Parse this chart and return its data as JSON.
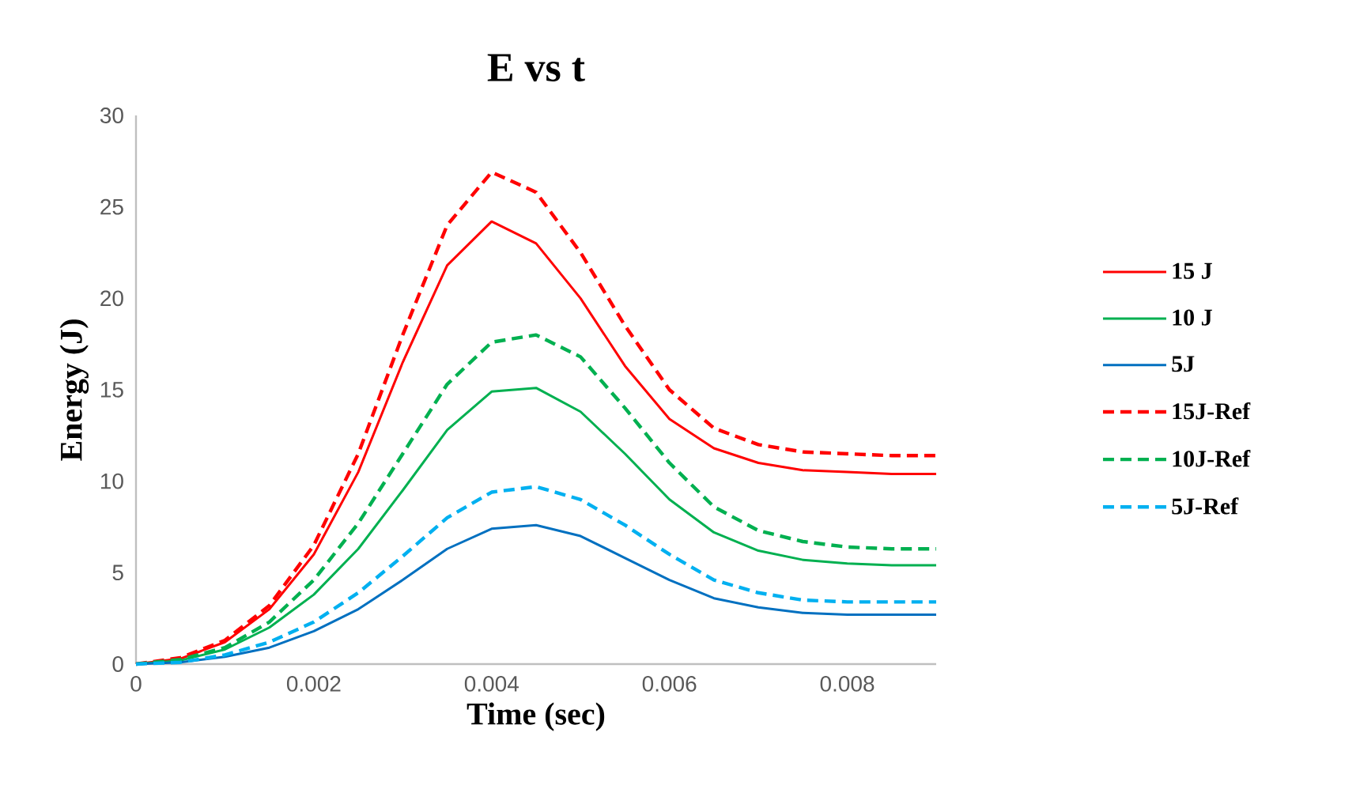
{
  "chart_data": {
    "type": "line",
    "title": "E vs t",
    "xlabel": "Time (sec)",
    "ylabel": "Energy (J)",
    "x": [
      0,
      0.0005,
      0.001,
      0.0015,
      0.002,
      0.0025,
      0.003,
      0.0035,
      0.004,
      0.0045,
      0.005,
      0.0055,
      0.006,
      0.0065,
      0.007,
      0.0075,
      0.008,
      0.0085,
      0.009
    ],
    "xlim": [
      0,
      0.009
    ],
    "xticks": [
      0,
      0.002,
      0.004,
      0.006,
      0.008
    ],
    "ylim": [
      0,
      30
    ],
    "yticks": [
      0,
      5,
      10,
      15,
      20,
      25,
      30
    ],
    "legend": "right",
    "series": [
      {
        "name": "15 J",
        "color": "#ff0000",
        "line_style": "solid",
        "values": [
          0,
          0.3,
          1.2,
          3.0,
          6.0,
          10.5,
          16.5,
          21.8,
          24.2,
          23.0,
          20.0,
          16.3,
          13.4,
          11.8,
          11.0,
          10.6,
          10.5,
          10.4,
          10.4
        ]
      },
      {
        "name": "10 J",
        "color": "#00b050",
        "line_style": "solid",
        "values": [
          0,
          0.2,
          0.8,
          2.0,
          3.8,
          6.3,
          9.5,
          12.8,
          14.9,
          15.1,
          13.8,
          11.5,
          9.0,
          7.2,
          6.2,
          5.7,
          5.5,
          5.4,
          5.4
        ]
      },
      {
        "name": "5J",
        "color": "#0070c0",
        "line_style": "solid",
        "values": [
          0,
          0.1,
          0.4,
          0.9,
          1.8,
          3.0,
          4.6,
          6.3,
          7.4,
          7.6,
          7.0,
          5.8,
          4.6,
          3.6,
          3.1,
          2.8,
          2.7,
          2.7,
          2.7
        ]
      },
      {
        "name": "15J-Ref",
        "color": "#ff0000",
        "line_style": "dashed",
        "values": [
          0,
          0.35,
          1.3,
          3.2,
          6.5,
          11.5,
          18.0,
          24.0,
          26.9,
          25.8,
          22.5,
          18.5,
          15.0,
          12.9,
          12.0,
          11.6,
          11.5,
          11.4,
          11.4
        ]
      },
      {
        "name": "10J-Ref",
        "color": "#00b050",
        "line_style": "dashed",
        "values": [
          0,
          0.25,
          0.9,
          2.3,
          4.6,
          7.7,
          11.5,
          15.3,
          17.6,
          18.0,
          16.8,
          14.0,
          11.0,
          8.6,
          7.3,
          6.7,
          6.4,
          6.3,
          6.3
        ]
      },
      {
        "name": "5J-Ref",
        "color": "#00b0f0",
        "line_style": "dashed",
        "values": [
          0,
          0.1,
          0.5,
          1.2,
          2.3,
          3.9,
          5.9,
          8.0,
          9.4,
          9.7,
          9.0,
          7.6,
          6.0,
          4.6,
          3.9,
          3.5,
          3.4,
          3.4,
          3.4
        ]
      }
    ]
  }
}
